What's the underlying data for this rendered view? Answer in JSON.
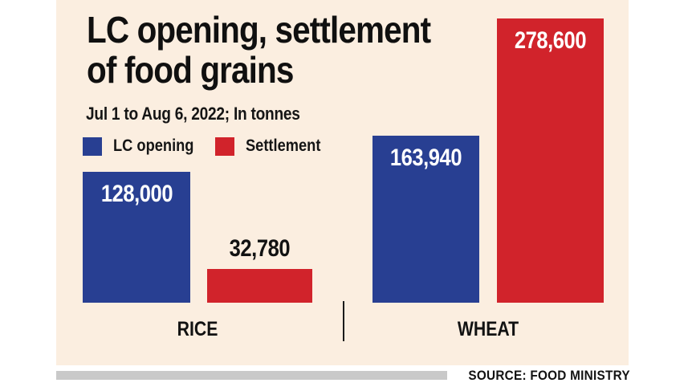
{
  "header": {
    "title_line1": "LC opening, settlement",
    "title_line2": "of food grains",
    "subtitle": "Jul 1 to Aug 6, 2022; In tonnes"
  },
  "legend": [
    {
      "label": "LC opening",
      "color": "#283f92"
    },
    {
      "label": "Settlement",
      "color": "#d1232b"
    }
  ],
  "chart_data": {
    "type": "bar",
    "title": "LC opening, settlement of food grains",
    "subtitle": "Jul 1 to Aug 6, 2022; In tonnes",
    "unit": "tonnes",
    "categories": [
      "RICE",
      "WHEAT"
    ],
    "series": [
      {
        "name": "LC opening",
        "color": "#283f92",
        "values": [
          128000,
          163940
        ],
        "labels": [
          "128,000",
          "163,940"
        ]
      },
      {
        "name": "Settlement",
        "color": "#d1232b",
        "values": [
          32780,
          278600
        ],
        "labels": [
          "32,780",
          "278,600"
        ]
      }
    ],
    "ylim": [
      0,
      278600
    ],
    "legend_position": "top-left",
    "grid": false,
    "value_labels_visible": true
  },
  "colors": {
    "panel_bg": "#fbeee0",
    "page_bg": "#ffffff",
    "footer_bar": "#c9c9c9",
    "text": "#121212"
  },
  "footer": {
    "source": "SOURCE: FOOD MINISTRY"
  }
}
